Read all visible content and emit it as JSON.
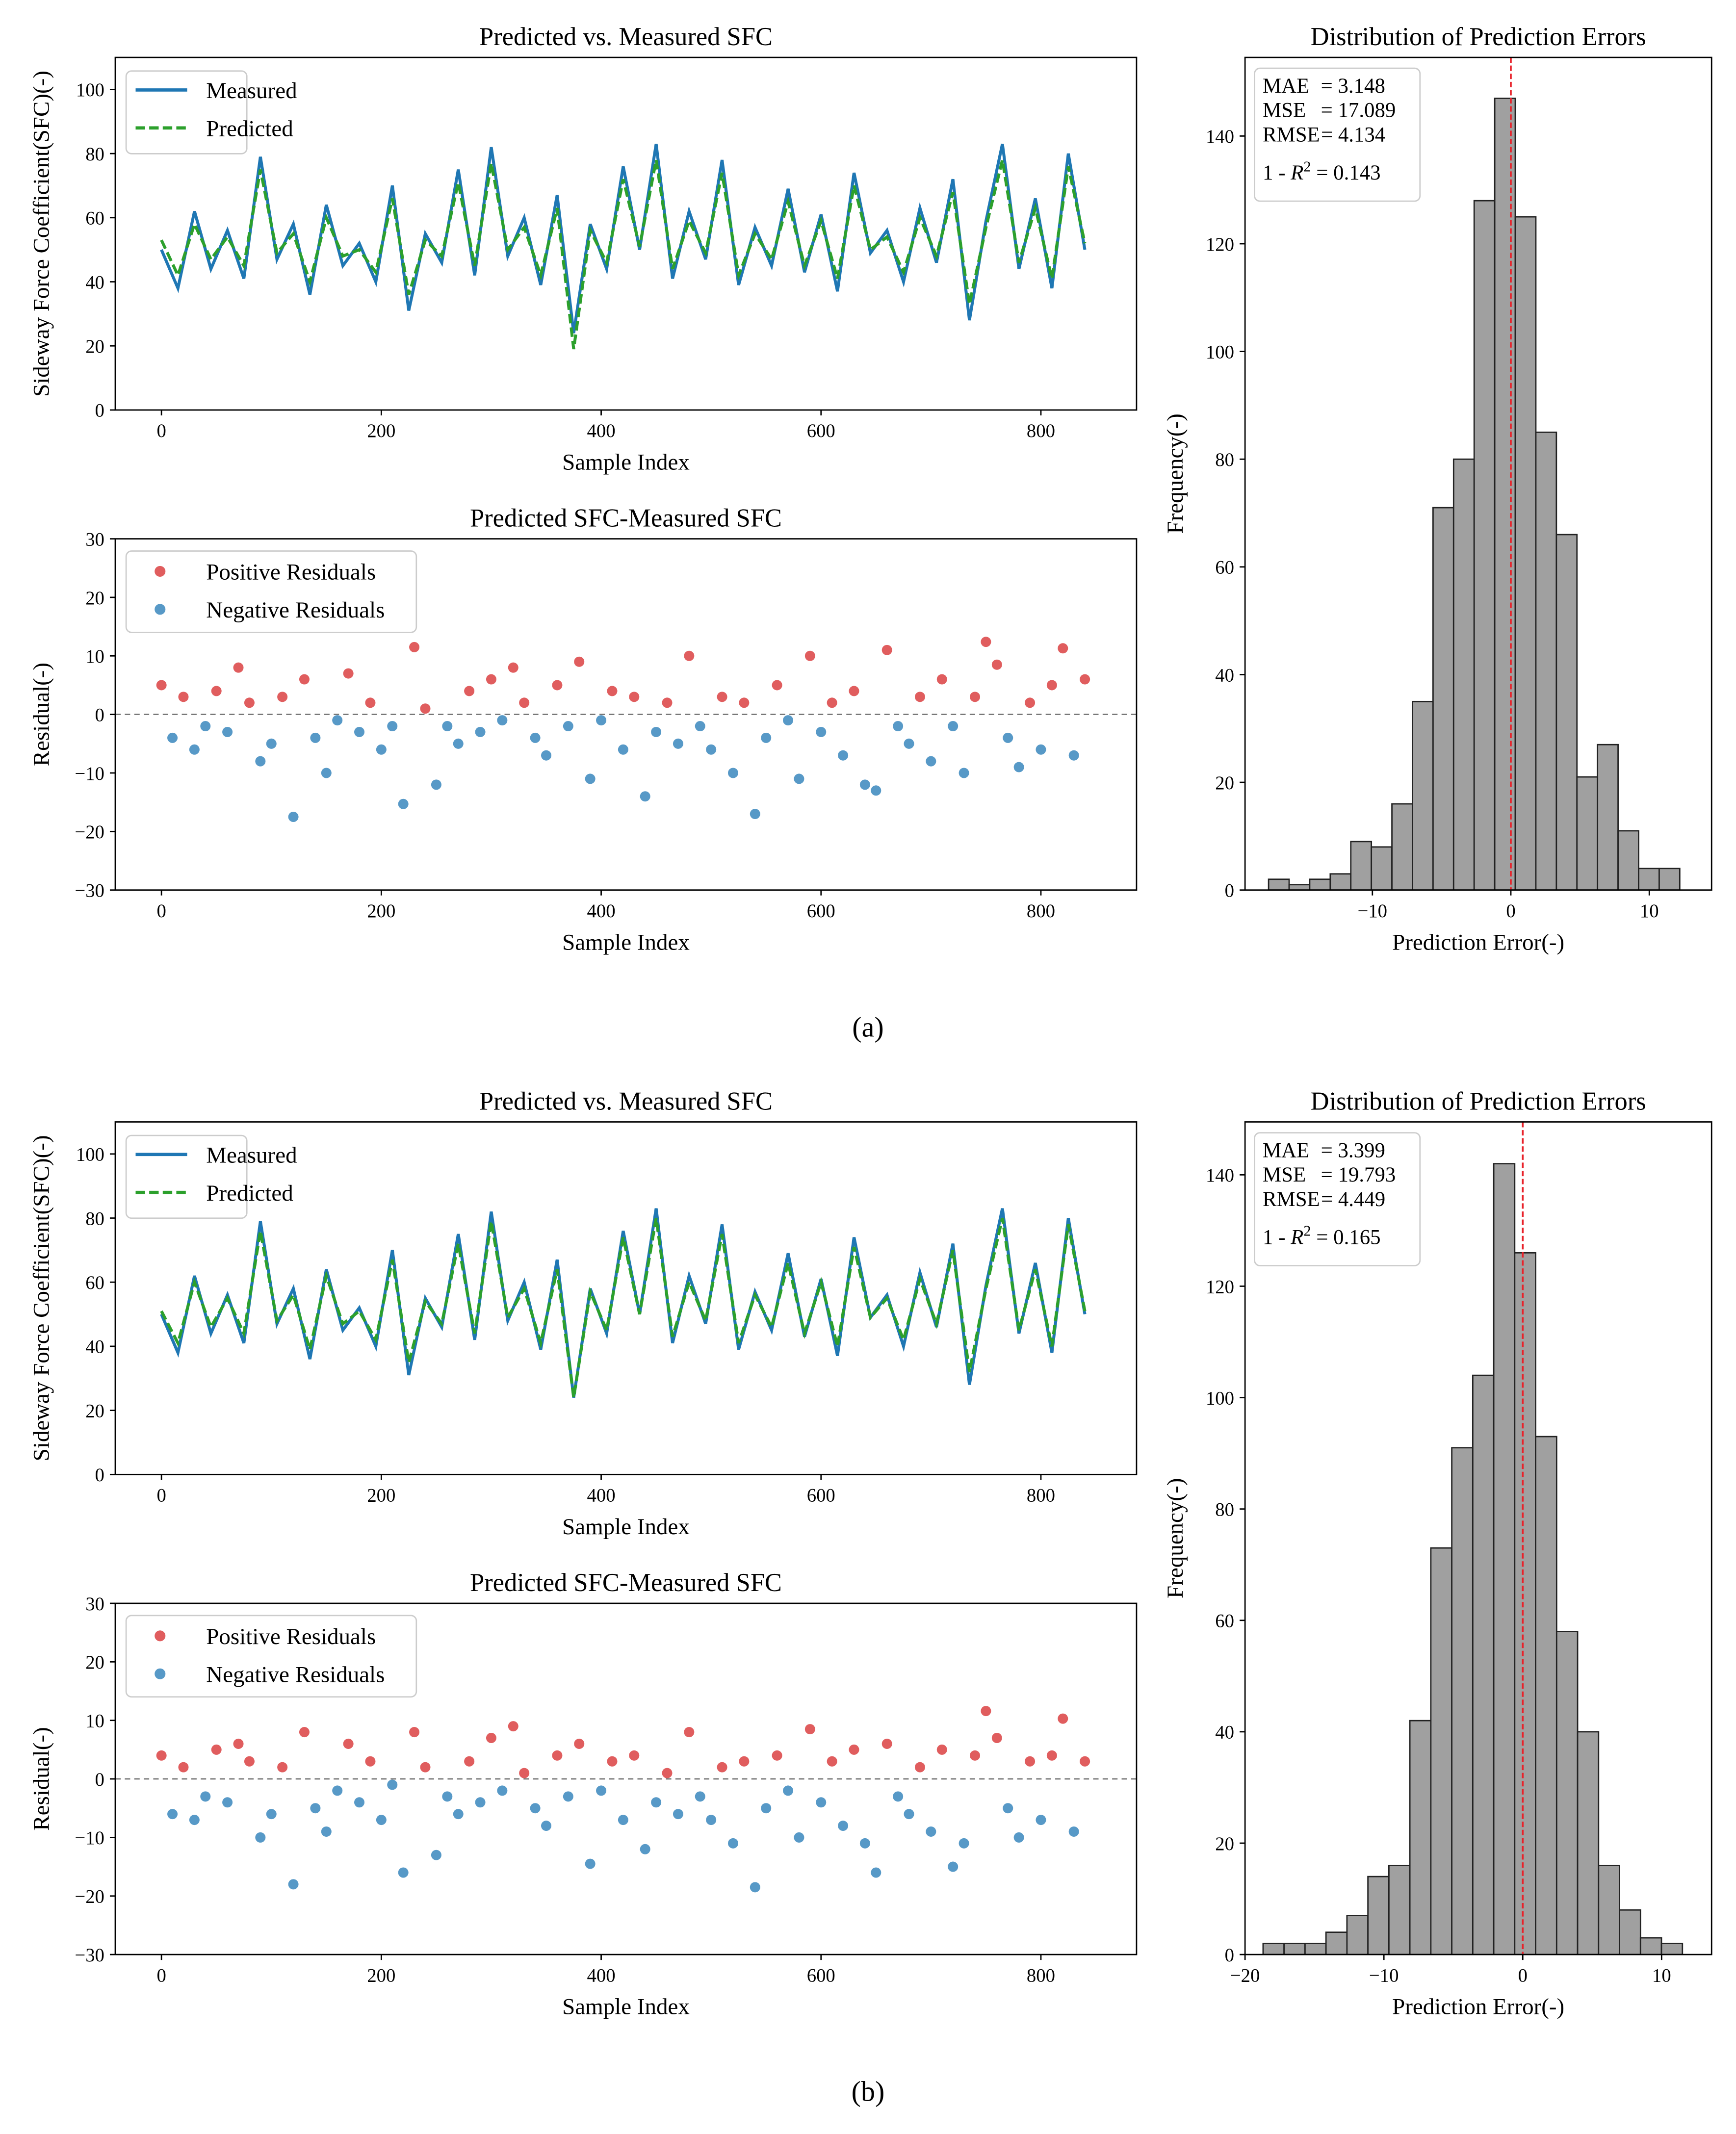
{
  "panel_labels": [
    "(a)",
    "(b)"
  ],
  "chart_data": [
    {
      "panel": 0,
      "type": "line",
      "title": "Predicted vs. Measured SFC",
      "xlabel": "Sample Index",
      "ylabel": "Sideway Force Coefficient(SFC)(-)",
      "xlim": [
        -42,
        887
      ],
      "ylim": [
        0,
        110
      ],
      "xticks": [
        0,
        200,
        400,
        600,
        800
      ],
      "yticks": [
        0,
        20,
        40,
        60,
        80,
        100
      ],
      "x_step": 15,
      "legend_position": "top-left",
      "series": [
        {
          "name": "Measured",
          "color": "#1f77b4",
          "style": "solid",
          "values": [
            50,
            38,
            62,
            44,
            56,
            41,
            79,
            47,
            58,
            36,
            64,
            45,
            52,
            40,
            70,
            31,
            55,
            46,
            75,
            42,
            82,
            48,
            60,
            39,
            67,
            24,
            58,
            44,
            76,
            50,
            83,
            41,
            62,
            47,
            78,
            39,
            57,
            45,
            69,
            43,
            61,
            37,
            74,
            49,
            56,
            40,
            63,
            46,
            72,
            28,
            59,
            83,
            44,
            66,
            38,
            80,
            50
          ]
        },
        {
          "name": "Predicted",
          "color": "#2ca02c",
          "style": "dashed",
          "values": [
            53,
            42,
            58,
            47,
            54,
            45,
            75,
            49,
            55,
            40,
            60,
            48,
            50,
            43,
            66,
            36,
            53,
            48,
            71,
            45,
            77,
            50,
            57,
            42,
            63,
            19,
            56,
            46,
            72,
            51,
            78,
            44,
            59,
            49,
            74,
            42,
            55,
            47,
            65,
            45,
            59,
            41,
            70,
            50,
            54,
            43,
            60,
            48,
            68,
            33,
            57,
            78,
            46,
            63,
            41,
            76,
            52
          ]
        }
      ]
    },
    {
      "panel": 0,
      "type": "scatter",
      "title": "Predicted SFC-Measured SFC",
      "xlabel": "Sample Index",
      "ylabel": "Residual(-)",
      "xlim": [
        -42,
        887
      ],
      "ylim": [
        -30,
        30
      ],
      "xticks": [
        0,
        200,
        400,
        600,
        800
      ],
      "yticks": [
        -30,
        -20,
        -10,
        0,
        10,
        20,
        30
      ],
      "x_step": 10,
      "legend_position": "top-left",
      "legend": [
        {
          "name": "Positive Residuals",
          "color": "#d62728"
        },
        {
          "name": "Negative Residuals",
          "color": "#1f77b4"
        }
      ],
      "reference_line": 0,
      "values": [
        5,
        -4,
        3,
        -6,
        -2,
        4,
        -3,
        8,
        2,
        -8,
        -5,
        3,
        -17.5,
        6,
        -4,
        -10,
        -1,
        7,
        -3,
        2,
        -6,
        -2,
        -15.3,
        11.5,
        1,
        -12,
        -2,
        -5,
        4,
        -3,
        6,
        -1,
        8,
        2,
        -4,
        -7,
        5,
        -2,
        9,
        -11,
        -1,
        4,
        -6,
        3,
        -14,
        -3,
        2,
        -5,
        10,
        -2,
        -6,
        3,
        -10,
        2,
        -17,
        -4,
        5,
        -1,
        -11,
        10,
        -3,
        2,
        -7,
        4,
        -12,
        -13,
        11,
        -2,
        -5,
        3,
        -8,
        6,
        -2,
        -10,
        3,
        12.4,
        8.5,
        -4,
        -9,
        2,
        -6,
        5,
        11.3,
        -7,
        6
      ]
    },
    {
      "panel": 0,
      "type": "bar",
      "title": "Distribution of Prediction Errors",
      "xlabel": "Prediction Error(-)",
      "ylabel": "Frequency(-)",
      "xlim": [
        -19.2,
        14.5
      ],
      "ylim": [
        0,
        154.6
      ],
      "xticks": [
        -10,
        0,
        10
      ],
      "yticks": [
        0,
        20,
        40,
        60,
        80,
        100,
        120,
        140
      ],
      "bin_start": -17.5,
      "bin_width": 1.485,
      "counts": [
        2,
        1,
        2,
        3,
        9,
        8,
        16,
        35,
        71,
        80,
        128,
        147,
        125,
        85,
        66,
        21,
        27,
        11,
        4,
        4
      ],
      "reference_line": 0,
      "stats": [
        {
          "label": "MAE",
          "value": "3.148"
        },
        {
          "label": "MSE",
          "value": "17.089"
        },
        {
          "label": "RMSE",
          "value": "4.134"
        },
        {
          "label": "1 - R²",
          "value": "0.143"
        }
      ]
    },
    {
      "panel": 1,
      "type": "line",
      "title": "Predicted vs. Measured SFC",
      "xlabel": "Sample Index",
      "ylabel": "Sideway Force Coefficient(SFC)(-)",
      "xlim": [
        -42,
        887
      ],
      "ylim": [
        0,
        110
      ],
      "xticks": [
        0,
        200,
        400,
        600,
        800
      ],
      "yticks": [
        0,
        20,
        40,
        60,
        80,
        100
      ],
      "x_step": 15,
      "legend_position": "top-left",
      "series": [
        {
          "name": "Measured",
          "color": "#1f77b4",
          "style": "solid",
          "values": [
            50,
            38,
            62,
            44,
            56,
            41,
            79,
            47,
            58,
            36,
            64,
            45,
            52,
            40,
            70,
            31,
            55,
            46,
            75,
            42,
            82,
            48,
            60,
            39,
            67,
            24,
            58,
            44,
            76,
            50,
            83,
            41,
            62,
            47,
            78,
            39,
            57,
            45,
            69,
            43,
            61,
            37,
            74,
            49,
            56,
            40,
            63,
            46,
            72,
            28,
            59,
            83,
            44,
            66,
            38,
            80,
            50
          ]
        },
        {
          "name": "Predicted",
          "color": "#2ca02c",
          "style": "dashed",
          "values": [
            51,
            41,
            60,
            46,
            55,
            44,
            76,
            48,
            56,
            39,
            62,
            47,
            51,
            42,
            67,
            35,
            54,
            47,
            72,
            44,
            79,
            49,
            58,
            41,
            64,
            24,
            57,
            45,
            74,
            50,
            80,
            43,
            60,
            48,
            75,
            41,
            56,
            46,
            66,
            44,
            60,
            40,
            71,
            49,
            55,
            42,
            61,
            47,
            70,
            32,
            58,
            80,
            45,
            64,
            40,
            78,
            51
          ]
        }
      ]
    },
    {
      "panel": 1,
      "type": "scatter",
      "title": "Predicted SFC-Measured SFC",
      "xlabel": "Sample Index",
      "ylabel": "Residual(-)",
      "xlim": [
        -42,
        887
      ],
      "ylim": [
        -30,
        30
      ],
      "xticks": [
        0,
        200,
        400,
        600,
        800
      ],
      "yticks": [
        -30,
        -20,
        -10,
        0,
        10,
        20,
        30
      ],
      "x_step": 10,
      "legend_position": "top-left",
      "legend": [
        {
          "name": "Positive Residuals",
          "color": "#d62728"
        },
        {
          "name": "Negative Residuals",
          "color": "#1f77b4"
        }
      ],
      "reference_line": 0,
      "values": [
        4,
        -6,
        2,
        -7,
        -3,
        5,
        -4,
        6,
        3,
        -10,
        -6,
        2,
        -18,
        8,
        -5,
        -9,
        -2,
        6,
        -4,
        3,
        -7,
        -1,
        -16,
        8,
        2,
        -13,
        -3,
        -6,
        3,
        -4,
        7,
        -2,
        9,
        1,
        -5,
        -8,
        4,
        -3,
        6,
        -14.5,
        -2,
        3,
        -7,
        4,
        -12,
        -4,
        1,
        -6,
        8,
        -3,
        -7,
        2,
        -11,
        3,
        -18.5,
        -5,
        4,
        -2,
        -10,
        8.5,
        -4,
        3,
        -8,
        5,
        -11,
        -16,
        6,
        -3,
        -6,
        2,
        -9,
        5,
        -15,
        -11,
        4,
        11.6,
        7,
        -5,
        -10,
        3,
        -7,
        4,
        10.3,
        -9,
        3
      ]
    },
    {
      "panel": 1,
      "type": "bar",
      "title": "Distribution of Prediction Errors",
      "xlabel": "Prediction Error(-)",
      "ylabel": "Frequency(-)",
      "xlim": [
        -20,
        13.6
      ],
      "ylim": [
        0,
        149.5
      ],
      "xticks": [
        -20,
        -10,
        0,
        10
      ],
      "yticks": [
        0,
        20,
        40,
        60,
        80,
        100,
        120,
        140
      ],
      "bin_start": -18.7,
      "bin_width": 1.51,
      "counts": [
        2,
        2,
        2,
        4,
        7,
        14,
        16,
        42,
        73,
        91,
        104,
        142,
        126,
        93,
        58,
        40,
        16,
        8,
        3,
        2
      ],
      "reference_line": 0,
      "stats": [
        {
          "label": "MAE",
          "value": "3.399"
        },
        {
          "label": "MSE",
          "value": "19.793"
        },
        {
          "label": "RMSE",
          "value": "4.449"
        },
        {
          "label": "1 - R²",
          "value": "0.165"
        }
      ]
    }
  ]
}
